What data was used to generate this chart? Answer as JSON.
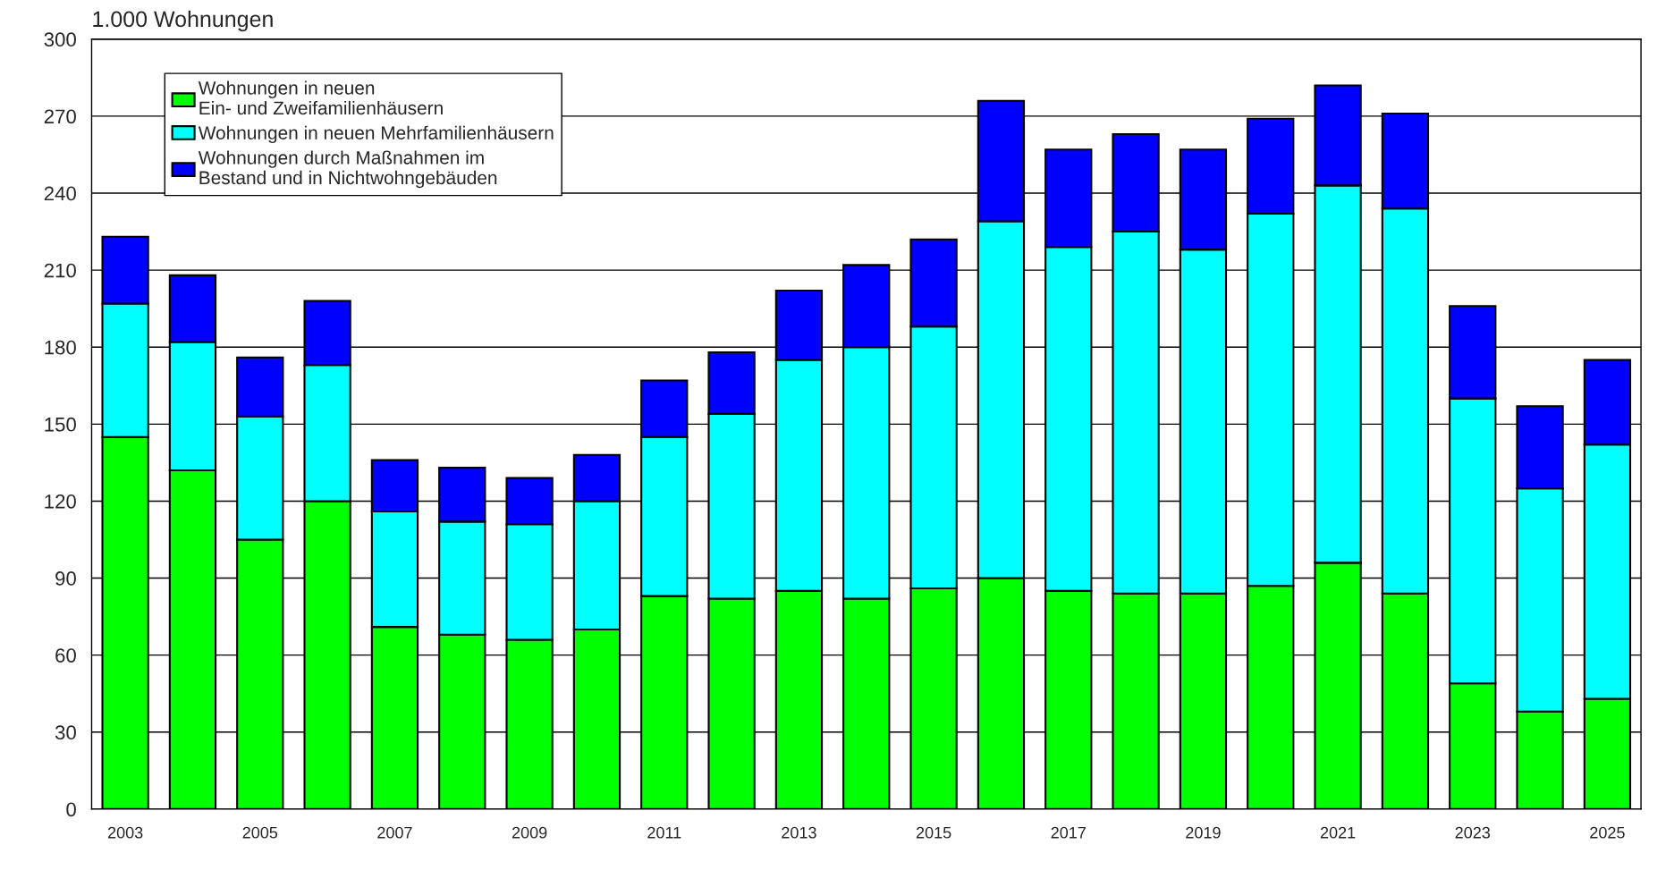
{
  "chart_data": {
    "type": "bar",
    "stacked": true,
    "ylabel": "1.000 Wohnungen",
    "categories": [
      "2003",
      null,
      "2005",
      null,
      "2007",
      null,
      "2009",
      null,
      "2011",
      null,
      "2013",
      null,
      "2015",
      null,
      "2017",
      null,
      "2019",
      null,
      "2021",
      null,
      "2023",
      null,
      "2025"
    ],
    "series": [
      {
        "name": "Wohnungen in neuen\nEin- und Zweifamilienhäusern",
        "color": "#00ff00",
        "values": [
          145,
          132,
          105,
          120,
          71,
          68,
          66,
          70,
          83,
          82,
          85,
          82,
          86,
          90,
          85,
          84,
          84,
          87,
          96,
          84,
          49,
          38,
          43
        ]
      },
      {
        "name": "Wohnungen in neuen Mehrfamilienhäusern",
        "color": "#00ffff",
        "values": [
          52,
          50,
          48,
          53,
          45,
          44,
          45,
          50,
          62,
          72,
          90,
          98,
          102,
          139,
          134,
          141,
          134,
          145,
          147,
          150,
          111,
          87,
          99
        ]
      },
      {
        "name": "Wohnungen durch Maßnahmen im\nBestand und in Nichtwohngebäuden",
        "color": "#0000ff",
        "values": [
          26,
          26,
          23,
          25,
          20,
          21,
          18,
          18,
          22,
          24,
          27,
          32,
          34,
          47,
          38,
          38,
          39,
          37,
          39,
          37,
          36,
          32,
          33
        ]
      }
    ],
    "ylim": [
      0,
      300
    ],
    "yticks": [
      0,
      30,
      60,
      90,
      120,
      150,
      180,
      210,
      240,
      270,
      300
    ],
    "grid": "y",
    "legend": "top left"
  }
}
